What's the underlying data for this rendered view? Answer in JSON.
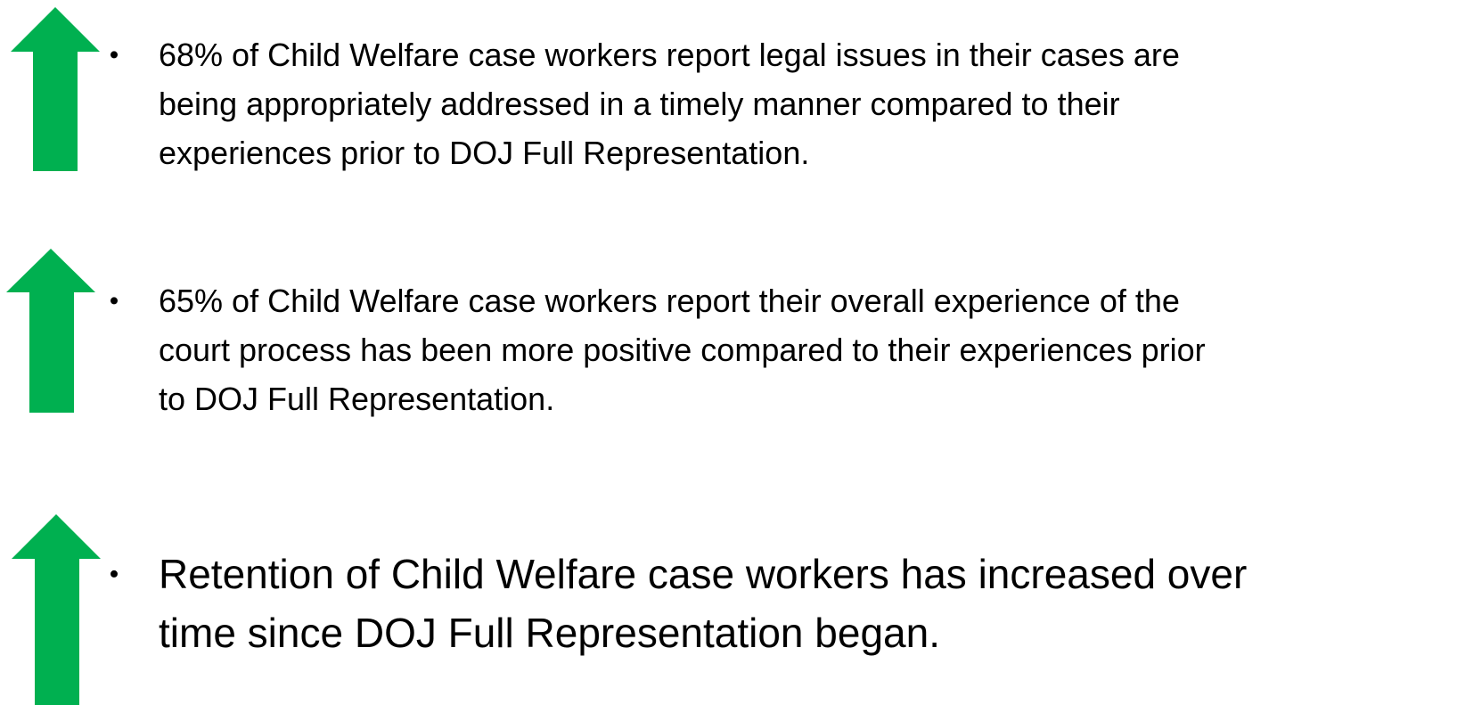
{
  "items": [
    {
      "lines": [
        "68% of Child Welfare case workers report legal issues in their cases are",
        "being appropriately addressed in a timely manner compared to their",
        "experiences prior to DOJ Full Representation."
      ]
    },
    {
      "lines": [
        "65% of Child Welfare case workers report their overall experience of the",
        "court process has been more positive compared to their experiences prior",
        "to DOJ Full Representation."
      ]
    },
    {
      "lines": [
        "Retention of Child Welfare case workers has increased over",
        "time since DOJ Full Representation began."
      ]
    }
  ]
}
